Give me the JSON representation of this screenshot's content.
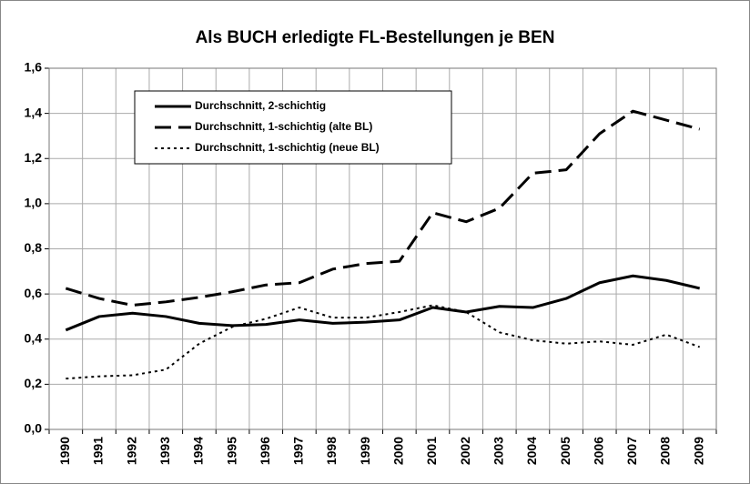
{
  "chart_data": {
    "type": "line",
    "title": "Als BUCH erledigte FL-Bestellungen je BEN",
    "categories": [
      "1990",
      "1991",
      "1992",
      "1993",
      "1994",
      "1995",
      "1996",
      "1997",
      "1998",
      "1999",
      "2000",
      "2001",
      "2002",
      "2003",
      "2004",
      "2005",
      "2006",
      "2007",
      "2008",
      "2009"
    ],
    "series": [
      {
        "name": "Durchschnitt, 2-schichtig",
        "color": "#000000",
        "dash": "solid",
        "values": [
          0.44,
          0.5,
          0.515,
          0.5,
          0.47,
          0.46,
          0.465,
          0.485,
          0.47,
          0.475,
          0.485,
          0.54,
          0.52,
          0.545,
          0.54,
          0.58,
          0.65,
          0.68,
          0.66,
          0.625
        ]
      },
      {
        "name": "Durchschnitt, 1-schichtig (alte BL)",
        "color": "#000000",
        "dash": "dashed",
        "values": [
          0.625,
          0.58,
          0.55,
          0.565,
          0.585,
          0.61,
          0.64,
          0.65,
          0.71,
          0.735,
          0.745,
          0.96,
          0.92,
          0.98,
          1.135,
          1.15,
          1.31,
          1.41,
          1.37,
          1.33
        ]
      },
      {
        "name": "Durchschnitt, 1-schichtig (neue BL)",
        "color": "#000000",
        "dash": "dotted",
        "values": [
          0.225,
          0.235,
          0.24,
          0.265,
          0.38,
          0.455,
          0.49,
          0.54,
          0.495,
          0.495,
          0.52,
          0.55,
          0.52,
          0.43,
          0.395,
          0.38,
          0.39,
          0.375,
          0.42,
          0.365
        ]
      }
    ],
    "ylim": [
      0,
      1.6
    ],
    "yticks": [
      {
        "value": 0,
        "label": "0,0"
      },
      {
        "value": 0.2,
        "label": "0,2"
      },
      {
        "value": 0.4,
        "label": "0,4"
      },
      {
        "value": 0.6,
        "label": "0,6"
      },
      {
        "value": 0.8,
        "label": "0,8"
      },
      {
        "value": 1.0,
        "label": "1,0"
      },
      {
        "value": 1.2,
        "label": "1,2"
      },
      {
        "value": 1.4,
        "label": "1,4"
      },
      {
        "value": 1.6,
        "label": "1,6"
      }
    ],
    "grid": true,
    "legend": "top-left"
  }
}
